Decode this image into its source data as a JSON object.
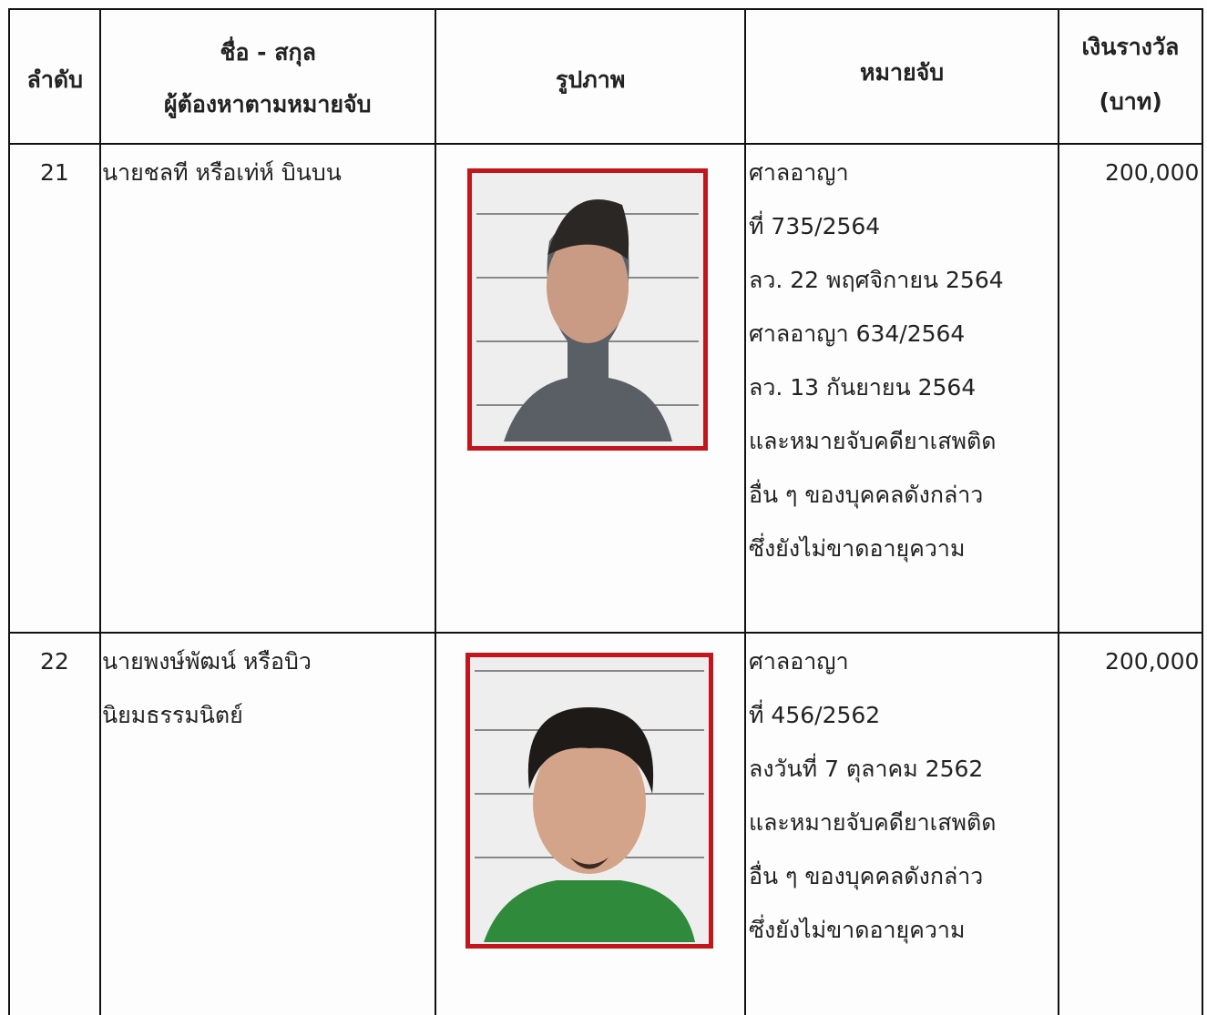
{
  "table": {
    "header": [
      [
        "ลำดับ"
      ],
      [
        "ชื่อ - สกุล",
        "ผู้ต้องหาตามหมายจับ"
      ],
      [
        "รูปภาพ"
      ],
      [
        "หมายจับ"
      ],
      [
        "เงินรางวัล",
        "(บาท)"
      ]
    ],
    "rows": [
      {
        "no": "21",
        "name": [
          "นายชลที หรือเท่ห์ บินบน"
        ],
        "warrant": [
          "ศาลอาญา",
          "ที่ 735/2564",
          "ลว. 22 พฤศจิกายน 2564",
          "ศาลอาญา 634/2564",
          "ลว. 13 กันยายน 2564",
          "และหมายจับคดียาเสพติด",
          "อื่น ๆ ของบุคคลดังกล่าว",
          "ซึ่งยังไม่ขาดอายุความ"
        ],
        "reward": "200,000"
      },
      {
        "no": "22",
        "name": [
          "นายพงษ์พัฒน์ หรือบิว",
          "นิยมธรรมนิตย์"
        ],
        "warrant": [
          "ศาลอาญา",
          "ที่ 456/2562",
          "ลงวันที่ 7 ตุลาคม 2562",
          "และหมายจับคดียาเสพติด",
          "อื่น ๆ ของบุคคลดังกล่าว",
          "ซึ่งยังไม่ขาดอายุความ"
        ],
        "reward": "200,000"
      }
    ]
  }
}
